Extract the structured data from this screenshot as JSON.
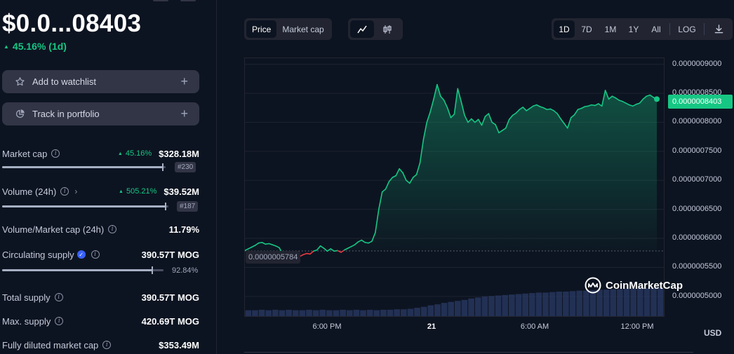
{
  "price": "$0.0...08403",
  "change": {
    "value": "45.16% (1d)",
    "direction": "up"
  },
  "buttons": {
    "watchlist": "Add to watchlist",
    "portfolio": "Track in portfolio"
  },
  "stats": {
    "market_cap": {
      "label": "Market cap",
      "change": "45.16%",
      "value": "$328.18M",
      "rank": "#230"
    },
    "volume": {
      "label": "Volume (24h)",
      "change": "505.21%",
      "value": "$39.52M",
      "rank": "#187"
    },
    "vol_mcap": {
      "label": "Volume/Market cap (24h)",
      "value": "11.79%"
    },
    "circulating": {
      "label": "Circulating supply",
      "value": "390.57T MOG",
      "percent": "92.84%",
      "percent_num": 0.9284
    },
    "total_supply": {
      "label": "Total supply",
      "value": "390.57T MOG"
    },
    "max_supply": {
      "label": "Max. supply",
      "value": "420.69T MOG"
    },
    "fdmc": {
      "label": "Fully diluted market cap",
      "value": "$353.49M"
    }
  },
  "toolbar": {
    "type_tabs": [
      "Price",
      "Market cap"
    ],
    "active_type": "Price",
    "chart_style_icons": [
      "line-chart-icon",
      "candlestick-icon"
    ],
    "ranges": [
      "1D",
      "7D",
      "1M",
      "1Y",
      "All"
    ],
    "active_range": "1D",
    "log": "LOG"
  },
  "colors": {
    "up": "#16c784",
    "down": "#ea3943",
    "brand": "#3861fb"
  },
  "chart_data": {
    "type": "line",
    "x_ticks": [
      "6:00 PM",
      "21",
      "6:00 AM",
      "12:00 PM"
    ],
    "y_ticks": [
      "0.0000009000",
      "0.0000008500",
      "0.0000008000",
      "0.0000007500",
      "0.0000007000",
      "0.0000006500",
      "0.0000006000",
      "0.0000005500",
      "0.0000005000"
    ],
    "ylim": [
      4.66e-07,
      9.105e-07
    ],
    "baseline": 5.784e-07,
    "baseline_label": "0.0000005784",
    "current_label": "0.0000008403",
    "currency": "USD",
    "watermark": "CoinMarketCap",
    "series": [
      {
        "values": [
          5.79e-07,
          5.82e-07,
          5.85e-07,
          5.88e-07,
          5.92e-07,
          5.93e-07,
          5.9e-07,
          5.91e-07,
          5.89e-07,
          5.87e-07,
          5.84e-07,
          5.73e-07,
          5.66e-07,
          5.63e-07,
          5.67e-07,
          5.71e-07,
          5.69e-07,
          5.72e-07,
          5.74e-07,
          5.73e-07,
          5.78e-07,
          5.8e-07,
          5.87e-07,
          5.83e-07,
          5.78e-07,
          5.82e-07,
          5.78e-07,
          5.79e-07,
          5.76e-07,
          5.8e-07,
          5.83e-07,
          5.86e-07,
          5.89e-07,
          5.94e-07,
          5.97e-07,
          5.93e-07,
          5.92e-07,
          5.95e-07,
          6.1e-07,
          6.5e-07,
          6.8e-07,
          6.85e-07,
          6.98e-07,
          7.05e-07,
          7.08e-07,
          7.2e-07,
          7.13e-07,
          7e-07,
          6.95e-07,
          7.05e-07,
          7.1e-07,
          7.3e-07,
          7.7e-07,
          8e-07,
          8.18e-07,
          8.4e-07,
          8.65e-07,
          8.45e-07,
          8.38e-07,
          8.25e-07,
          8.08e-07,
          8.14e-07,
          8.58e-07,
          8.36e-07,
          8.12e-07,
          8e-07,
          8.06e-07,
          8e-07,
          8.05e-07,
          7.95e-07,
          8.1e-07,
          8.15e-07,
          8e-07,
          7.96e-07,
          7.82e-07,
          7.86e-07,
          7.9e-07,
          8.05e-07,
          8.12e-07,
          8.16e-07,
          8.22e-07,
          8.26e-07,
          8.2e-07,
          8.24e-07,
          8.28e-07,
          8.3e-07,
          8.27e-07,
          8.25e-07,
          8.22e-07,
          8.23e-07,
          8.2e-07,
          8.15e-07,
          8.06e-07,
          7.98e-07,
          7.9e-07,
          8.08e-07,
          8.13e-07,
          8.22e-07,
          8.24e-07,
          8.27e-07,
          8.28e-07,
          8.3e-07,
          8.29e-07,
          8.32e-07,
          8.28e-07,
          8.55e-07,
          8.4e-07,
          8.45e-07,
          8.42e-07,
          8.38e-07,
          8.36e-07,
          8.33e-07,
          8.3e-07,
          8.28e-07,
          8.31e-07,
          8.33e-07,
          8.4e-07,
          8.45e-07,
          8.47e-07,
          8.43e-07,
          8.4e-07
        ]
      }
    ],
    "volume_relative": [
      0.12,
      0.12,
      0.13,
      0.12,
      0.13,
      0.12,
      0.13,
      0.12,
      0.12,
      0.13,
      0.12,
      0.13,
      0.12,
      0.12,
      0.13,
      0.12,
      0.13,
      0.12,
      0.13,
      0.12,
      0.13,
      0.13,
      0.14,
      0.14,
      0.15,
      0.17,
      0.19,
      0.22,
      0.24,
      0.27,
      0.29,
      0.31,
      0.33,
      0.36,
      0.38,
      0.4,
      0.41,
      0.42,
      0.43,
      0.44,
      0.45,
      0.46,
      0.47,
      0.48,
      0.48,
      0.49,
      0.5,
      0.5,
      0.51,
      0.52,
      0.52,
      0.53,
      0.54,
      0.54,
      0.55,
      0.55,
      0.56,
      0.56,
      0.57,
      0.57,
      0.58,
      0.58
    ]
  }
}
